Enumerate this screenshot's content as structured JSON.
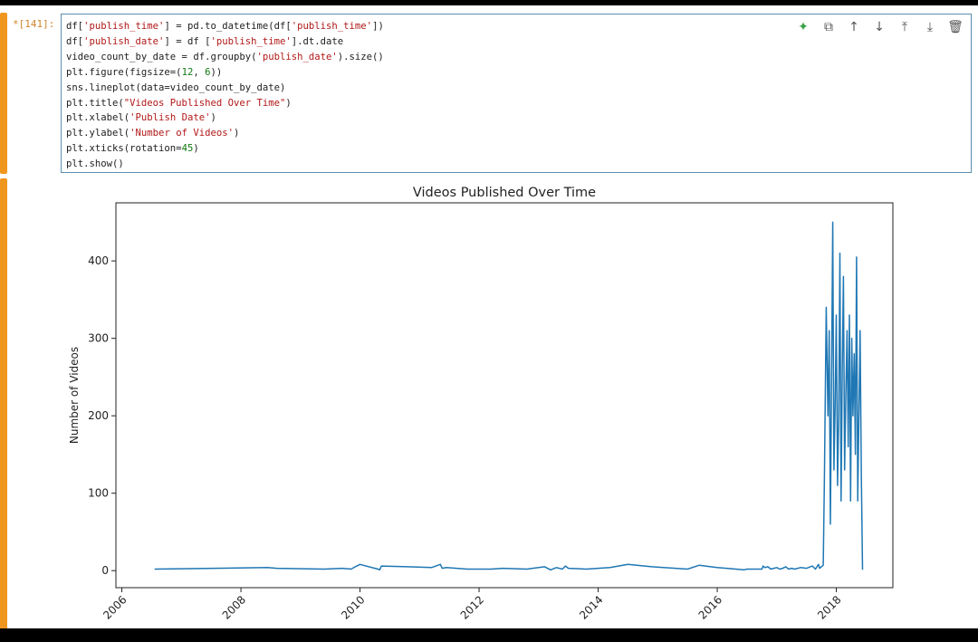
{
  "cell": {
    "prompt": "*[141]:",
    "code_lines": [
      "df['publish_time'] = pd.to_datetime(df['publish_time'])",
      "df['publish_date'] = df ['publish_time'].dt.date",
      "video_count_by_date = df.groupby('publish_date').size()",
      "plt.figure(figsize=(12, 6))",
      "sns.lineplot(data=video_count_by_date)",
      "plt.title(\"Videos Published Over Time\")",
      "plt.xlabel('Publish Date')",
      "plt.ylabel('Number of Videos')",
      "plt.xticks(rotation=45)",
      "plt.show()"
    ]
  },
  "toolbar": [
    {
      "name": "ai-assist-icon",
      "glyph": "✦"
    },
    {
      "name": "copy-icon",
      "glyph": "⧉"
    },
    {
      "name": "move-up-icon",
      "glyph": "↑"
    },
    {
      "name": "move-down-icon",
      "glyph": "↓"
    },
    {
      "name": "insert-above-icon",
      "glyph": "⤒"
    },
    {
      "name": "insert-below-icon",
      "glyph": "⤓"
    },
    {
      "name": "delete-icon",
      "glyph": "🗑"
    }
  ],
  "colors": {
    "line": "#1f77b4",
    "accent": "#f0961e"
  },
  "chart_data": {
    "type": "line",
    "title": "Videos Published Over Time",
    "xlabel": "",
    "ylabel": "Number of Videos",
    "xlim": [
      2005.9,
      2018.95
    ],
    "ylim": [
      -22,
      475
    ],
    "xticks": [
      2006,
      2008,
      2010,
      2012,
      2014,
      2016,
      2018
    ],
    "yticks": [
      0,
      100,
      200,
      300,
      400
    ],
    "grid": false,
    "series": [
      {
        "x": [
          2006.55,
          2008.45,
          2008.6,
          2009.4,
          2009.7,
          2009.85,
          2009.92,
          2010.0,
          2010.3,
          2010.33,
          2010.36,
          2010.8,
          2011.2,
          2011.35,
          2011.38,
          2011.45,
          2011.8,
          2012.2,
          2012.4,
          2012.8,
          2013.1,
          2013.2,
          2013.3,
          2013.4,
          2013.45,
          2013.5,
          2013.8,
          2014.2,
          2014.5,
          2014.9,
          2015.5,
          2015.7,
          2015.8,
          2016.0,
          2016.45,
          2016.5,
          2016.75,
          2016.77,
          2016.8,
          2016.85,
          2016.9,
          2016.95,
          2017.0,
          2017.05,
          2017.1,
          2017.15,
          2017.2,
          2017.25,
          2017.3,
          2017.4,
          2017.5,
          2017.6,
          2017.65,
          2017.7,
          2017.72,
          2017.75,
          2017.78,
          2017.8,
          2017.83,
          2017.86,
          2017.88,
          2017.9,
          2017.92,
          2017.94,
          2017.96,
          2017.98,
          2018.0,
          2018.02,
          2018.04,
          2018.06,
          2018.08,
          2018.1,
          2018.12,
          2018.14,
          2018.16,
          2018.18,
          2018.2,
          2018.22,
          2018.24,
          2018.26,
          2018.28,
          2018.3,
          2018.32,
          2018.34,
          2018.36,
          2018.38,
          2018.4,
          2018.42,
          2018.44
        ],
        "values": [
          2,
          4,
          3,
          2,
          3,
          2,
          5,
          8,
          2,
          1,
          6,
          5,
          4,
          8,
          3,
          4,
          2,
          2,
          3,
          2,
          5,
          1,
          4,
          2,
          6,
          3,
          2,
          4,
          8,
          5,
          2,
          7,
          6,
          4,
          1,
          2,
          2,
          6,
          4,
          5,
          2,
          3,
          4,
          2,
          3,
          5,
          2,
          3,
          2,
          4,
          3,
          6,
          2,
          8,
          3,
          5,
          7,
          120,
          340,
          200,
          310,
          60,
          250,
          450,
          130,
          210,
          330,
          110,
          200,
          410,
          90,
          260,
          380,
          130,
          230,
          310,
          160,
          330,
          90,
          300,
          200,
          280,
          150,
          405,
          90,
          200,
          310,
          120,
          1
        ]
      }
    ]
  }
}
